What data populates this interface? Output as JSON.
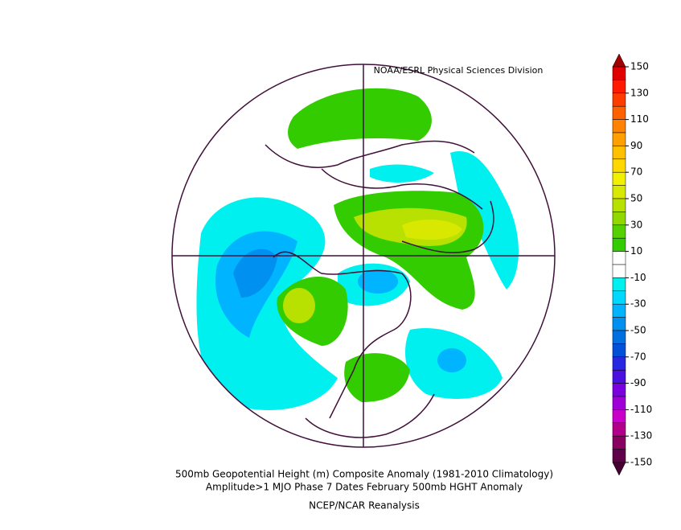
{
  "source": "NOAA/ESRL Physical Sciences Division",
  "caption": [
    "500mb Geopotential Height (m) Composite Anomaly (1981-2010 Climatology)",
    "Amplitude>1 MJO Phase 7 Dates February 500mb HGHT Anomaly",
    "NCEP/NCAR Reanalysis"
  ],
  "legend": {
    "ticks": [
      150,
      130,
      110,
      90,
      70,
      50,
      30,
      10,
      -10,
      -30,
      -50,
      -70,
      -90,
      -110,
      -130,
      -150
    ],
    "colors": [
      "#e00000",
      "#ff1a00",
      "#ff3c00",
      "#ff6000",
      "#ff8200",
      "#ffa000",
      "#ffc000",
      "#ffd800",
      "#f0f000",
      "#d8e800",
      "#b8e000",
      "#90d800",
      "#55d000",
      "#33cc00",
      "#ffffff",
      "#ffffff",
      "#00f0f0",
      "#00d8ff",
      "#00b4ff",
      "#0090f0",
      "#0070e0",
      "#0050d8",
      "#2828e0",
      "#4a10e0",
      "#7a00e0",
      "#a000d8",
      "#c800c8",
      "#b0008a",
      "#880060",
      "#600048"
    ],
    "top_color": "#a00000",
    "bottom_color": "#440030"
  }
}
